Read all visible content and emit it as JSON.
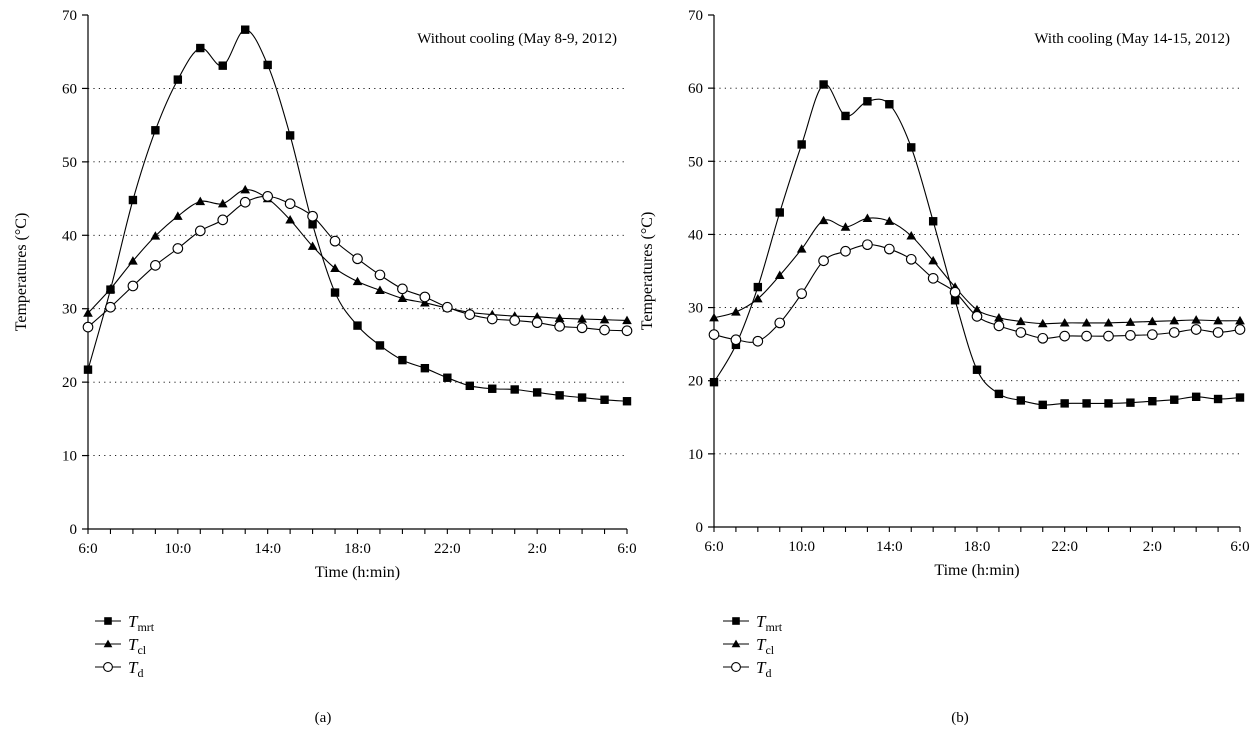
{
  "chart_data": [
    {
      "type": "line",
      "panel_label": "(a)",
      "annotation": "Without cooling (May 8-9, 2012)",
      "xlabel": "Time (h:min)",
      "ylabel": "Temperatures (°C)",
      "ylim": [
        0,
        70
      ],
      "y_ticks": [
        "0",
        "10",
        "20",
        "30",
        "40",
        "50",
        "60",
        "70"
      ],
      "x_ticks": [
        "6:0",
        "10:0",
        "14:0",
        "18:0",
        "22:0",
        "2:0",
        "6:0"
      ],
      "xlim_hours_elapsed": [
        0,
        24
      ],
      "grid": "horizontal dotted",
      "legend_position": "below plot",
      "series": [
        {
          "name": "T",
          "subscript": "mrt",
          "marker": "square-filled",
          "values": [
            21.7,
            32.6,
            44.8,
            54.3,
            61.2,
            65.5,
            63.1,
            68.0,
            63.2,
            53.6,
            41.5,
            32.2,
            27.7,
            25.0,
            23.0,
            21.9,
            20.6,
            19.5,
            19.1,
            19.0,
            18.6,
            18.2,
            17.9,
            17.6,
            17.4
          ]
        },
        {
          "name": "T",
          "subscript": "cl",
          "marker": "triangle-filled",
          "values": [
            29.4,
            32.7,
            36.5,
            39.9,
            42.6,
            44.6,
            44.3,
            46.2,
            45.0,
            42.1,
            38.5,
            35.5,
            33.7,
            32.5,
            31.4,
            30.8,
            30.1,
            29.5,
            29.2,
            29.0,
            28.9,
            28.7,
            28.6,
            28.5,
            28.4
          ]
        },
        {
          "name": "T",
          "subscript": "d",
          "marker": "circle-open",
          "values": [
            27.5,
            30.2,
            33.1,
            35.9,
            38.2,
            40.6,
            42.1,
            44.5,
            45.3,
            44.3,
            42.6,
            39.2,
            36.8,
            34.6,
            32.7,
            31.6,
            30.2,
            29.2,
            28.6,
            28.4,
            28.1,
            27.6,
            27.4,
            27.1,
            27.0
          ]
        }
      ]
    },
    {
      "type": "line",
      "panel_label": "(b)",
      "annotation": "With cooling (May 14-15, 2012)",
      "xlabel": "Time (h:min)",
      "ylabel": "Temperatures (°C)",
      "ylim": [
        0,
        70
      ],
      "y_ticks": [
        "0",
        "10",
        "20",
        "30",
        "40",
        "50",
        "60",
        "70"
      ],
      "x_ticks": [
        "6:0",
        "10:0",
        "14:0",
        "18:0",
        "22:0",
        "2:0",
        "6:0"
      ],
      "xlim_hours_elapsed": [
        0,
        24
      ],
      "grid": "horizontal dotted",
      "legend_position": "below plot",
      "series": [
        {
          "name": "T",
          "subscript": "mrt",
          "marker": "square-filled",
          "values": [
            19.8,
            24.9,
            32.8,
            43.0,
            52.3,
            60.5,
            56.2,
            58.2,
            57.8,
            51.9,
            41.8,
            31.0,
            21.5,
            18.2,
            17.3,
            16.7,
            16.9,
            16.9,
            16.9,
            17.0,
            17.2,
            17.4,
            17.8,
            17.5,
            17.7
          ]
        },
        {
          "name": "T",
          "subscript": "cl",
          "marker": "triangle-filled",
          "values": [
            28.6,
            29.4,
            31.2,
            34.4,
            38.0,
            41.9,
            41.0,
            42.2,
            41.8,
            39.8,
            36.4,
            32.8,
            29.7,
            28.6,
            28.1,
            27.8,
            27.9,
            27.9,
            27.9,
            28.0,
            28.1,
            28.2,
            28.3,
            28.2,
            28.2
          ]
        },
        {
          "name": "T",
          "subscript": "d",
          "marker": "circle-open",
          "values": [
            26.3,
            25.6,
            25.4,
            27.9,
            31.9,
            36.4,
            37.7,
            38.6,
            38.0,
            36.6,
            34.0,
            32.1,
            28.8,
            27.5,
            26.6,
            25.8,
            26.1,
            26.1,
            26.1,
            26.2,
            26.3,
            26.6,
            27.0,
            26.6,
            27.0
          ]
        }
      ]
    }
  ]
}
